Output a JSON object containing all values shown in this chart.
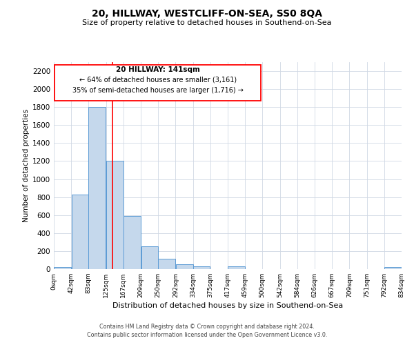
{
  "title": "20, HILLWAY, WESTCLIFF-ON-SEA, SS0 8QA",
  "subtitle": "Size of property relative to detached houses in Southend-on-Sea",
  "xlabel": "Distribution of detached houses by size in Southend-on-Sea",
  "ylabel": "Number of detached properties",
  "bar_color": "#c5d8ec",
  "bar_edge_color": "#5b9bd5",
  "background_color": "#ffffff",
  "grid_color": "#d0d8e4",
  "red_line_x": 141,
  "annotation_title": "20 HILLWAY: 141sqm",
  "annotation_line1": "← 64% of detached houses are smaller (3,161)",
  "annotation_line2": "35% of semi-detached houses are larger (1,716) →",
  "footer_line1": "Contains HM Land Registry data © Crown copyright and database right 2024.",
  "footer_line2": "Contains public sector information licensed under the Open Government Licence v3.0.",
  "bin_edges": [
    0,
    42,
    83,
    125,
    167,
    209,
    250,
    292,
    334,
    375,
    417,
    459,
    500,
    542,
    584,
    626,
    667,
    709,
    751,
    792,
    834
  ],
  "bin_counts": [
    25,
    830,
    1800,
    1200,
    590,
    255,
    115,
    50,
    30,
    0,
    30,
    0,
    0,
    0,
    0,
    0,
    0,
    0,
    0,
    20
  ],
  "ylim": [
    0,
    2300
  ],
  "ytick_interval": 200,
  "fig_width": 6.0,
  "fig_height": 5.0,
  "dpi": 100
}
